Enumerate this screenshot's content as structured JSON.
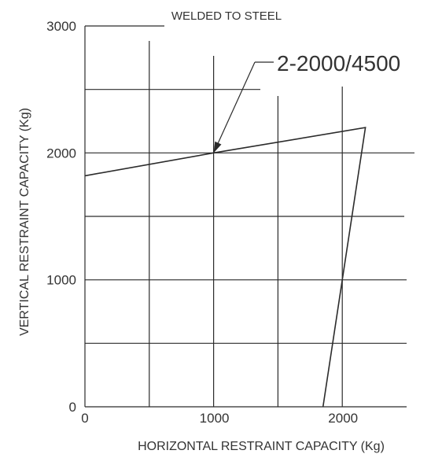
{
  "chart_data": {
    "type": "line",
    "title": "WELDED TO STEEL",
    "xlabel": "HORIZONTAL RESTRAINT CAPACITY (Kg)",
    "ylabel": "VERTICAL RESTRAINT CAPACITY (Kg)",
    "xlim": [
      0,
      2500
    ],
    "ylim": [
      0,
      3000
    ],
    "x_ticks": [
      {
        "value": 0,
        "label": "0"
      },
      {
        "value": 1000,
        "label": "1000"
      },
      {
        "value": 2000,
        "label": "2000"
      }
    ],
    "y_ticks": [
      {
        "value": 0,
        "label": "0"
      },
      {
        "value": 1000,
        "label": "1000"
      },
      {
        "value": 2000,
        "label": "2000"
      },
      {
        "value": 3000,
        "label": "3000"
      }
    ],
    "grid": true,
    "series": [
      {
        "name": "2-2000/4500",
        "points": [
          {
            "x": 0,
            "y": 1820
          },
          {
            "x": 1000,
            "y": 2000
          },
          {
            "x": 2180,
            "y": 2200
          },
          {
            "x": 1850,
            "y": 0
          }
        ]
      }
    ],
    "annotation": {
      "text": "2-2000/4500",
      "points_to": {
        "x": 1000,
        "y": 2000
      }
    }
  }
}
